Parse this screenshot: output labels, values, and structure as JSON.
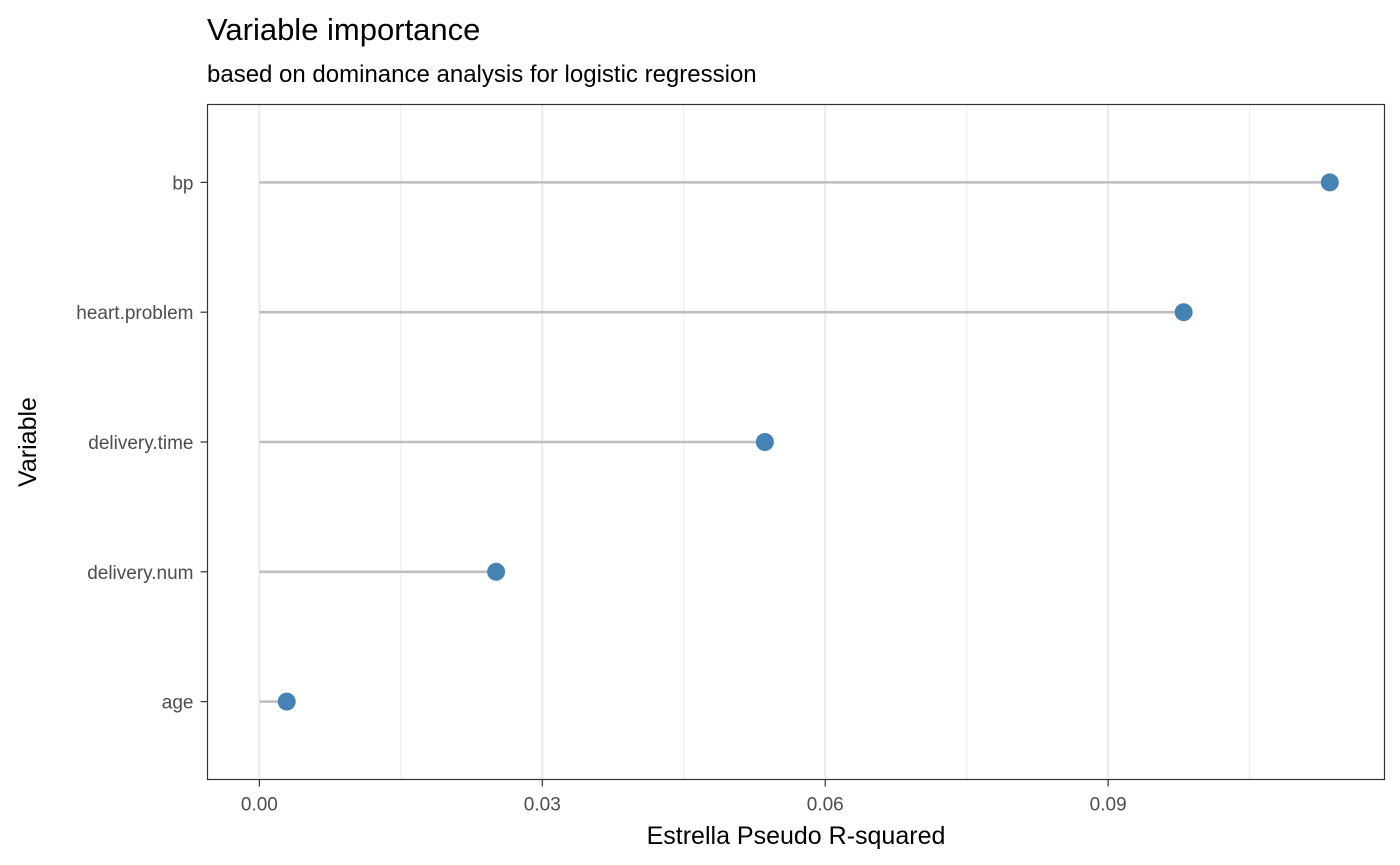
{
  "chart_data": {
    "type": "lollipop",
    "title": "Variable importance",
    "subtitle": "based on dominance analysis for logistic regression",
    "xlabel": "Estrella Pseudo R-squared",
    "ylabel": "Variable",
    "categories": [
      "bp",
      "heart.problem",
      "delivery.time",
      "delivery.num",
      "age"
    ],
    "values": [
      0.1135,
      0.098,
      0.0536,
      0.0251,
      0.0029
    ],
    "xlim": [
      -0.0055,
      0.1193
    ],
    "xticks": [
      0.0,
      0.03,
      0.06,
      0.09
    ],
    "xtick_labels": [
      "0.00",
      "0.03",
      "0.06",
      "0.09"
    ],
    "x_minor_gridlines": [
      0.015,
      0.045,
      0.075,
      0.105
    ],
    "grid": true,
    "legend": "none",
    "point_color": "#4682b4",
    "stem_color": "#bebebe",
    "gridline_color": "#ebebeb",
    "panel_border_color": "#333333"
  }
}
